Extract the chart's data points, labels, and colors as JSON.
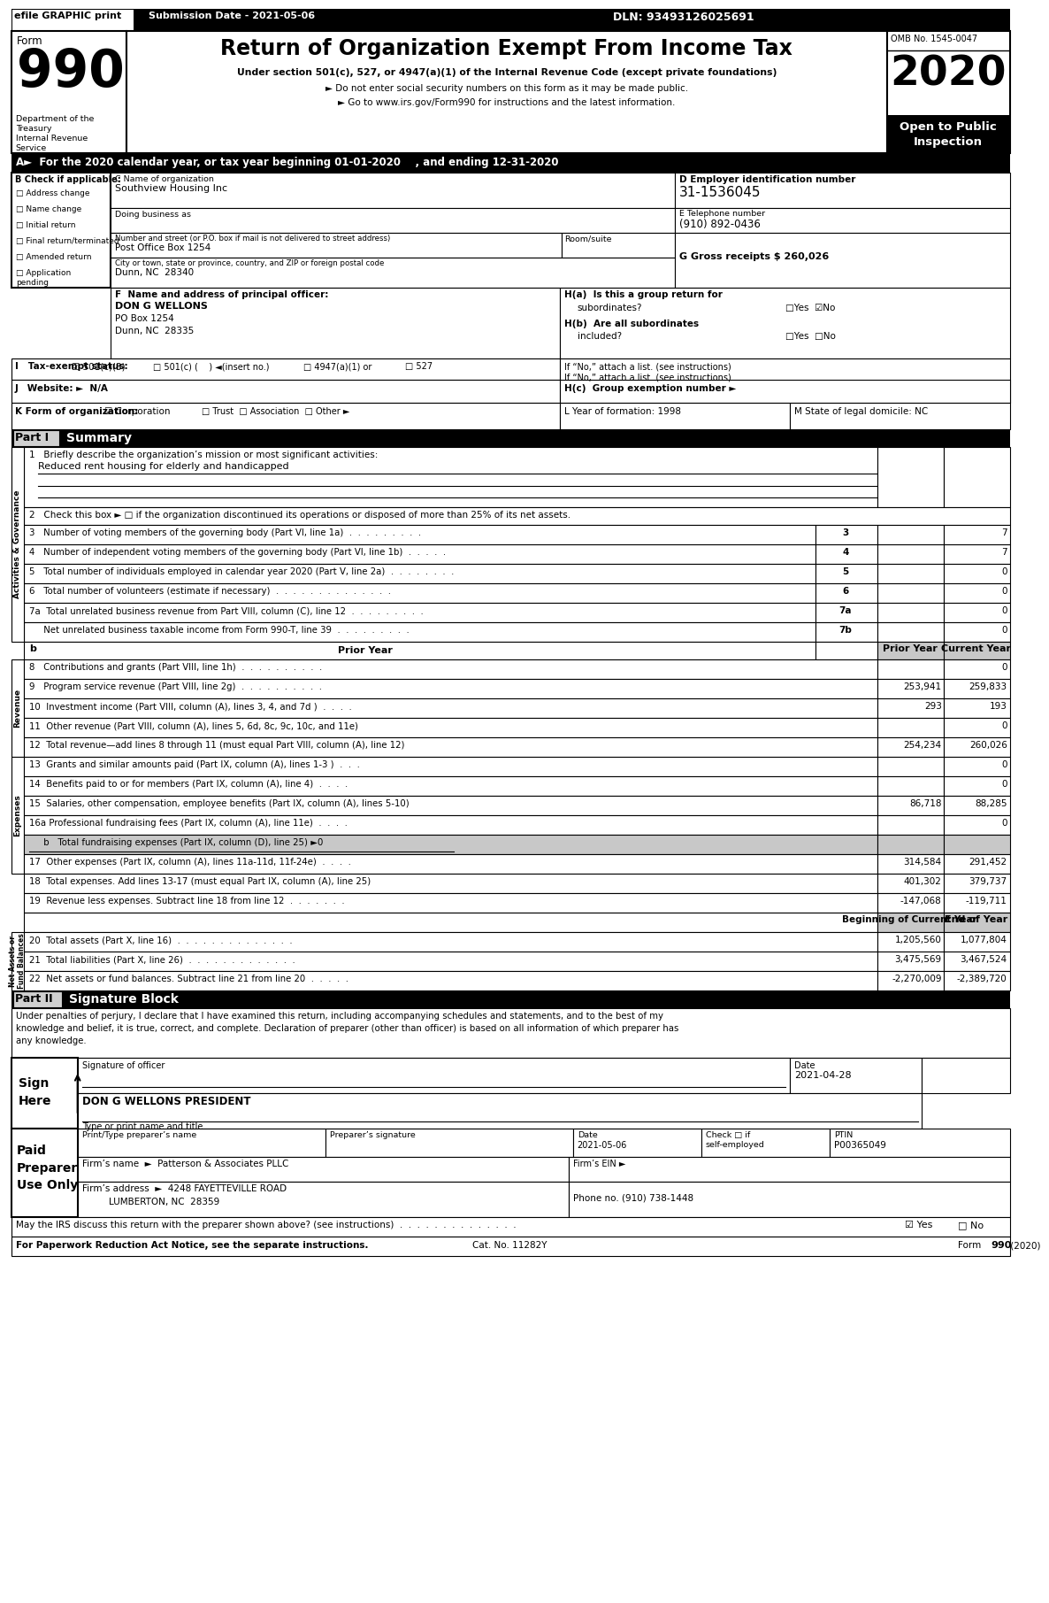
{
  "header_efile": "efile GRAPHIC print",
  "header_submission": "Submission Date - 2021-05-06",
  "header_dln": "DLN: 93493126025691",
  "form_title": "Return of Organization Exempt From Income Tax",
  "form_subtitle1": "Under section 501(c), 527, or 4947(a)(1) of the Internal Revenue Code (except private foundations)",
  "form_subtitle2": "► Do not enter social security numbers on this form as it may be made public.",
  "form_subtitle3": "► Go to www.irs.gov/Form990 for instructions and the latest information.",
  "dept_text": "Department of the\nTreasury\nInternal Revenue\nService",
  "omb_text": "OMB No. 1545-0047",
  "year_text": "2020",
  "open_text": "Open to Public\nInspection",
  "section_A": "A►  For the 2020 calendar year, or tax year beginning 01-01-2020    , and ending 12-31-2020",
  "check_if_applicable": "B Check if applicable:",
  "checkboxes_B": [
    "Address change",
    "Name change",
    "Initial return",
    "Final return/terminated",
    "Amended return",
    "Application\npending"
  ],
  "org_name_label": "C Name of organization",
  "org_name": "Southview Housing Inc",
  "dba_label": "Doing business as",
  "address_label": "Number and street (or P.O. box if mail is not delivered to street address)",
  "address_value": "Post Office Box 1254",
  "roomsuite_label": "Room/suite",
  "city_label": "City or town, state or province, country, and ZIP or foreign postal code",
  "city_value": "Dunn, NC  28340",
  "employer_id_label": "D Employer identification number",
  "employer_id": "31-1536045",
  "phone_label": "E Telephone number",
  "phone": "(910) 892-0436",
  "gross_receipts": "G Gross receipts $ 260,026",
  "principal_label": "F  Name and address of principal officer:",
  "principal_name": "DON G WELLONS",
  "principal_addr1": "PO Box 1254",
  "principal_addr2": "Dunn, NC  28335",
  "ha_label": "H(a)  Is this a group return for",
  "ha_q": "subordinates?",
  "hb_label": "H(b)  Are all subordinates",
  "hb_q": "included?",
  "tax_exempt_label": "I   Tax-exempt status:",
  "if_no_label": "If “No,” attach a list. (see instructions)",
  "website_label": "J   Website: ►  N/A",
  "hc_label": "H(c)  Group exemption number ►",
  "form_org_label": "K Form of organization:",
  "year_formation": "L Year of formation: 1998",
  "state_domicile": "M State of legal domicile: NC",
  "part1_label": "Part I",
  "part1_title": "Summary",
  "line1_label": "1   Briefly describe the organization’s mission or most significant activities:",
  "line1_value": "Reduced rent housing for elderly and handicapped",
  "line2_label": "2   Check this box ► □ if the organization discontinued its operations or disposed of more than 25% of its net assets.",
  "line3_label": "3   Number of voting members of the governing body (Part VI, line 1a)  .  .  .  .  .  .  .  .  .",
  "line3_num": "3",
  "line3_val": "7",
  "line4_label": "4   Number of independent voting members of the governing body (Part VI, line 1b)  .  .  .  .  .",
  "line4_num": "4",
  "line4_val": "7",
  "line5_label": "5   Total number of individuals employed in calendar year 2020 (Part V, line 2a)  .  .  .  .  .  .  .  .",
  "line5_num": "5",
  "line5_val": "0",
  "line6_label": "6   Total number of volunteers (estimate if necessary)  .  .  .  .  .  .  .  .  .  .  .  .  .  .",
  "line6_num": "6",
  "line6_val": "0",
  "line7a_label": "7a  Total unrelated business revenue from Part VIII, column (C), line 12  .  .  .  .  .  .  .  .  .",
  "line7a_num": "7a",
  "line7a_val": "0",
  "line7b_label": "     Net unrelated business taxable income from Form 990-T, line 39  .  .  .  .  .  .  .  .  .",
  "line7b_num": "7b",
  "line7b_val": "0",
  "prior_year_label": "Prior Year",
  "current_year_label": "Current Year",
  "line8_label": "8   Contributions and grants (Part VIII, line 1h)  .  .  .  .  .  .  .  .  .  .",
  "line8_prior": "",
  "line8_curr": "0",
  "line9_label": "9   Program service revenue (Part VIII, line 2g)  .  .  .  .  .  .  .  .  .  .",
  "line9_prior": "253,941",
  "line9_curr": "259,833",
  "line10_label": "10  Investment income (Part VIII, column (A), lines 3, 4, and 7d )  .  .  .  .",
  "line10_prior": "293",
  "line10_curr": "193",
  "line11_label": "11  Other revenue (Part VIII, column (A), lines 5, 6d, 8c, 9c, 10c, and 11e)",
  "line11_prior": "",
  "line11_curr": "0",
  "line12_label": "12  Total revenue—add lines 8 through 11 (must equal Part VIII, column (A), line 12)",
  "line12_prior": "254,234",
  "line12_curr": "260,026",
  "line13_label": "13  Grants and similar amounts paid (Part IX, column (A), lines 1-3 )  .  .  .",
  "line13_prior": "",
  "line13_curr": "0",
  "line14_label": "14  Benefits paid to or for members (Part IX, column (A), line 4)  .  .  .  .",
  "line14_prior": "",
  "line14_curr": "0",
  "line15_label": "15  Salaries, other compensation, employee benefits (Part IX, column (A), lines 5-10)",
  "line15_prior": "86,718",
  "line15_curr": "88,285",
  "line16a_label": "16a Professional fundraising fees (Part IX, column (A), line 11e)  .  .  .  .",
  "line16a_prior": "",
  "line16a_curr": "0",
  "line16b_label": "     b   Total fundraising expenses (Part IX, column (D), line 25) ►0",
  "line17_label": "17  Other expenses (Part IX, column (A), lines 11a-11d, 11f-24e)  .  .  .  .",
  "line17_prior": "314,584",
  "line17_curr": "291,452",
  "line18_label": "18  Total expenses. Add lines 13-17 (must equal Part IX, column (A), line 25)",
  "line18_prior": "401,302",
  "line18_curr": "379,737",
  "line19_label": "19  Revenue less expenses. Subtract line 18 from line 12  .  .  .  .  .  .  .",
  "line19_prior": "-147,068",
  "line19_curr": "-119,711",
  "boc_label": "Beginning of Current Year",
  "eoy_label": "End of Year",
  "line20_label": "20  Total assets (Part X, line 16)  .  .  .  .  .  .  .  .  .  .  .  .  .  .",
  "line20_boc": "1,205,560",
  "line20_eoy": "1,077,804",
  "line21_label": "21  Total liabilities (Part X, line 26)  .  .  .  .  .  .  .  .  .  .  .  .  .",
  "line21_boc": "3,475,569",
  "line21_eoy": "3,467,524",
  "line22_label": "22  Net assets or fund balances. Subtract line 21 from line 20  .  .  .  .  .",
  "line22_boc": "-2,270,009",
  "line22_eoy": "-2,389,720",
  "part2_label": "Part II",
  "part2_title": "Signature Block",
  "sig_penalty_text": "Under penalties of perjury, I declare that I have examined this return, including accompanying schedules and statements, and to the best of my\nknowledge and belief, it is true, correct, and complete. Declaration of preparer (other than officer) is based on all information of which preparer has\nany knowledge.",
  "sig_officer_label": "Signature of officer",
  "sig_date": "2021-04-28",
  "sig_date_label": "Date",
  "sig_name": "DON G WELLONS PRESIDENT",
  "sig_type_label": "Type or print name and title",
  "preparer_name_label": "Print/Type preparer’s name",
  "preparer_sig_label": "Preparer’s signature",
  "preparer_date_label": "Date",
  "preparer_date_val": "2021-05-06",
  "preparer_check_label": "Check □ if\nself-employed",
  "preparer_ptin_label": "PTIN",
  "preparer_ptin": "P00365049",
  "firm_name_label": "Firm’s name",
  "firm_name": "►  Patterson & Associates PLLC",
  "firm_ein_label": "Firm’s EIN ►",
  "firm_address_label": "Firm’s address",
  "firm_address": "►  4248 FAYETTEVILLE ROAD",
  "firm_city": "LUMBERTON, NC  28359",
  "firm_phone_label": "Phone no. (910) 738-1448",
  "discuss_label": "May the IRS discuss this return with the preparer shown above? (see instructions)  .  .  .  .  .  .  .  .  .  .  .  .  .  .",
  "discuss_yes": "☑ Yes",
  "discuss_no": "□ No",
  "for_paperwork_label": "For Paperwork Reduction Act Notice, see the separate instructions.",
  "cat_no": "Cat. No. 11282Y",
  "form_footer": "Form 990 (2020)"
}
